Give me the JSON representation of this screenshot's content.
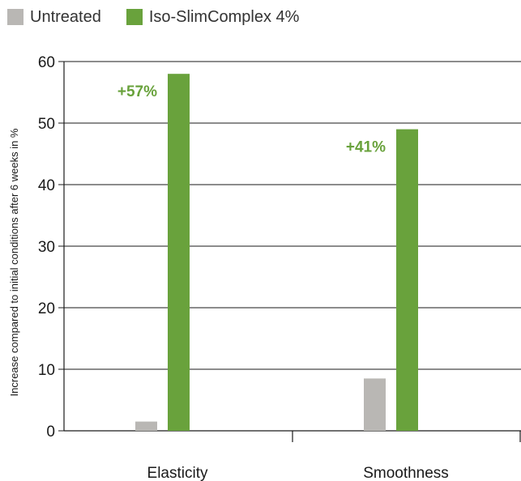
{
  "chart_data": {
    "type": "bar",
    "categories": [
      "Elasticity",
      "Smoothness"
    ],
    "series": [
      {
        "name": "Untreated",
        "color": "#b9b7b4",
        "values": [
          1.5,
          8.5
        ]
      },
      {
        "name": "Iso-SlimComplex 4%",
        "color": "#69a23c",
        "values": [
          58,
          49
        ]
      }
    ],
    "annotations": [
      {
        "text": "+57%",
        "category": "Elasticity"
      },
      {
        "text": "+41%",
        "category": "Smoothness"
      }
    ],
    "ylabel": "Increase compared to initial conditions after 6 weeks in %",
    "xlabel": "",
    "ylim": [
      0,
      60
    ],
    "yticks": [
      0,
      10,
      20,
      30,
      40,
      50,
      60
    ],
    "grid": true,
    "legend_position": "top-left",
    "annotation_color": "#69a23c"
  }
}
